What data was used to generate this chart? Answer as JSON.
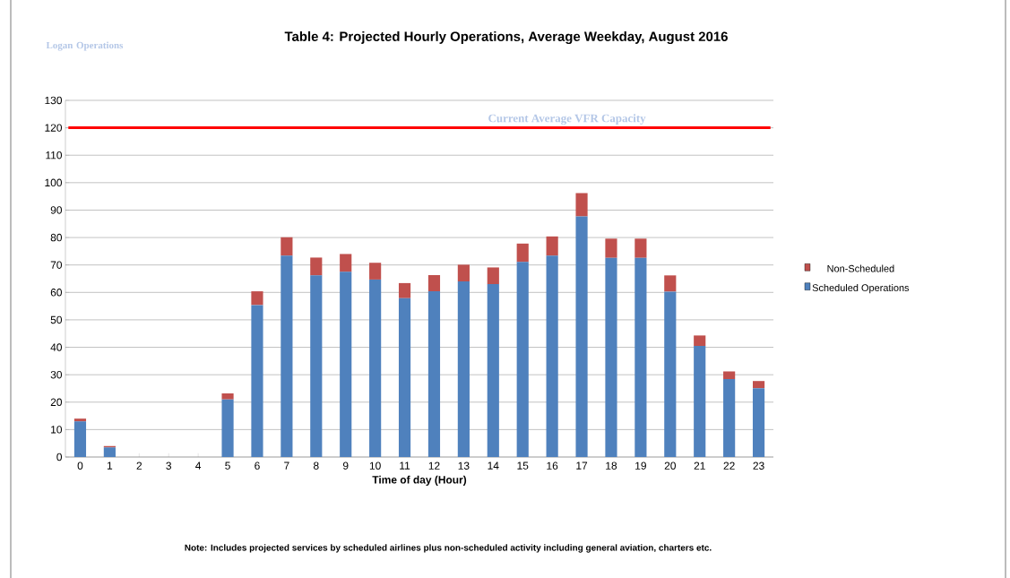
{
  "chart_data": {
    "type": "bar",
    "stacked": true,
    "title": "Table 4: Projected Hourly Operations, Average Weekday, August 2016",
    "xlabel": "Time of day (Hour)",
    "categories": [
      "0",
      "1",
      "2",
      "3",
      "4",
      "5",
      "6",
      "7",
      "8",
      "9",
      "10",
      "11",
      "12",
      "13",
      "14",
      "15",
      "16",
      "17",
      "18",
      "19",
      "20",
      "21",
      "22",
      "23"
    ],
    "series": [
      {
        "name": "Scheduled Operations",
        "color": "#4f81bd",
        "values": [
          13,
          3.5,
          0,
          0,
          0,
          21,
          55.4,
          73.4,
          66.2,
          67.5,
          64.7,
          57.9,
          60.4,
          64,
          63,
          71.1,
          73.4,
          87.7,
          72.6,
          72.6,
          60.3,
          40.5,
          28.4,
          25.1
        ]
      },
      {
        "name": "Non-Scheduled",
        "color": "#c0504d",
        "values": [
          1,
          0.5,
          0,
          0,
          0,
          2.2,
          5,
          6.7,
          6.5,
          6.5,
          6.1,
          5.5,
          5.9,
          6.1,
          6.1,
          6.7,
          7,
          8.5,
          7,
          7,
          5.9,
          3.8,
          2.8,
          2.6
        ]
      }
    ],
    "ylim": [
      0,
      130
    ],
    "yticks": [
      0,
      10,
      20,
      30,
      40,
      50,
      60,
      70,
      80,
      90,
      100,
      110,
      120,
      130
    ],
    "grid": "y",
    "legend": "right",
    "ref_lines": [
      {
        "axis": "y",
        "value": 120,
        "label": "Current Average VFR Capacity",
        "color": "#ff0000"
      }
    ],
    "annotations": [
      "Logan Operations",
      "Note: Includes projected services by scheduled airlines plus non-scheduled activity including general aviation, charters etc."
    ]
  }
}
